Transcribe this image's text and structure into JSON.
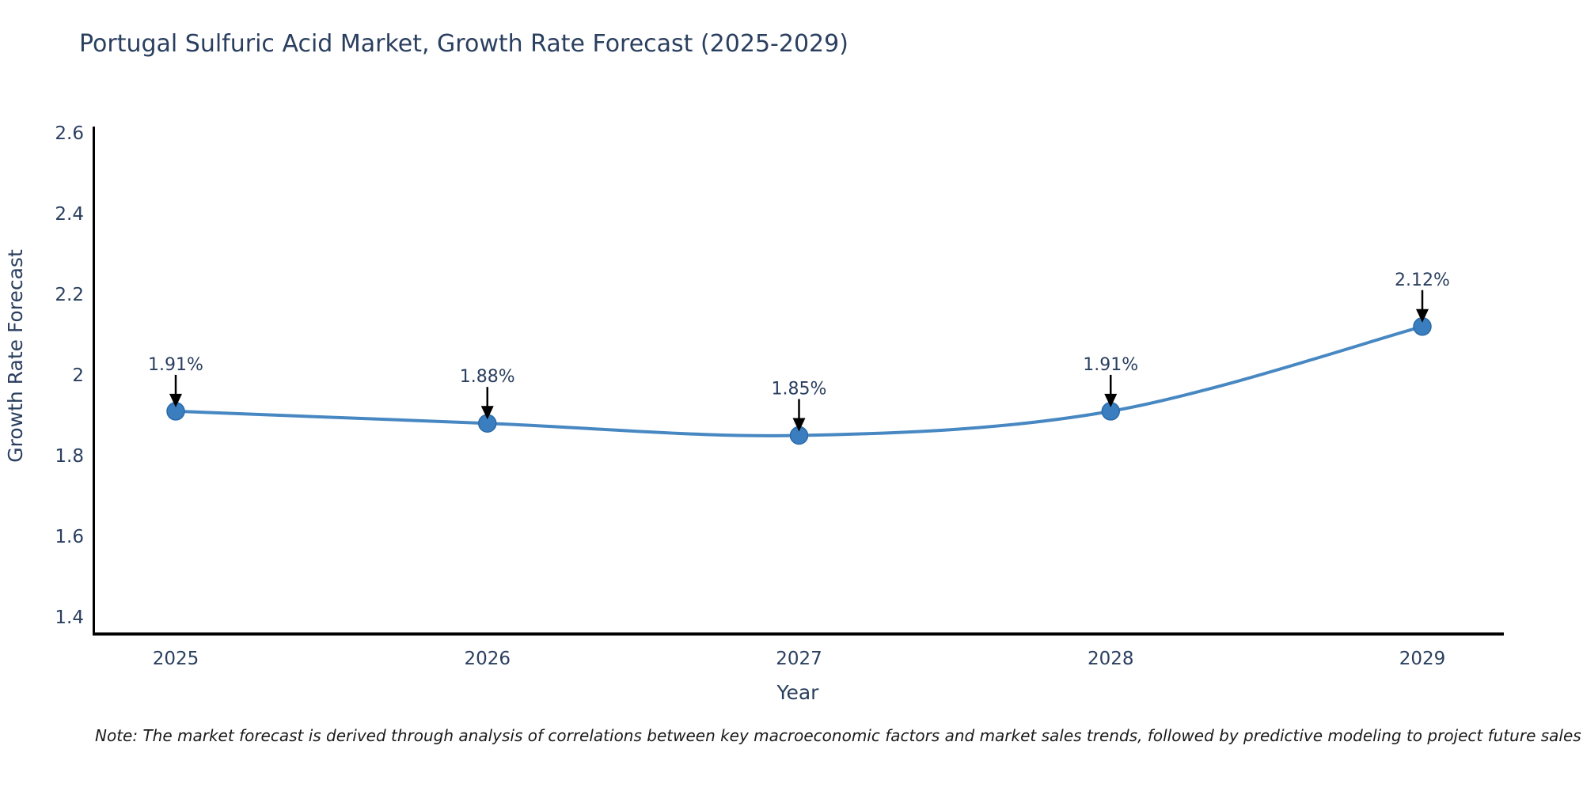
{
  "title": "Portugal Sulfuric Acid Market, Growth Rate Forecast (2025-2029)",
  "note": "Note: The market forecast is derived through analysis of correlations between key macroeconomic factors and market sales trends, followed by predictive modeling to project future sales",
  "colors": {
    "line": "#4787c2",
    "marker_fill": "#3a7ebf",
    "marker_edge": "#2a6aa8",
    "axis": "#000000",
    "text": "#2a3f5f",
    "arrow": "#000000",
    "note_text": "#1a1a1a",
    "background": "#ffffff"
  },
  "chart_data": {
    "type": "line",
    "title": "Portugal Sulfuric Acid Market, Growth Rate Forecast (2025-2029)",
    "xlabel": "Year",
    "ylabel": "Growth Rate Forecast",
    "x": [
      2025,
      2026,
      2027,
      2028,
      2029
    ],
    "x_tick_labels": [
      "2025",
      "2026",
      "2027",
      "2028",
      "2029"
    ],
    "values": [
      1.91,
      1.88,
      1.85,
      1.91,
      2.12
    ],
    "point_labels": [
      "1.91%",
      "1.88%",
      "1.85%",
      "1.91%",
      "2.12%"
    ],
    "y_tick_labels": [
      "2.6",
      "2.4",
      "2.2",
      "2",
      "1.8",
      "1.6",
      "1.4"
    ],
    "y_tick_values": [
      2.6,
      2.4,
      2.2,
      2.0,
      1.8,
      1.6,
      1.4
    ],
    "ylim": [
      1.355,
      2.615
    ],
    "grid": false,
    "legend": "none",
    "line_shape": "spline",
    "marker_style": "circle",
    "annotation_arrows": true
  }
}
